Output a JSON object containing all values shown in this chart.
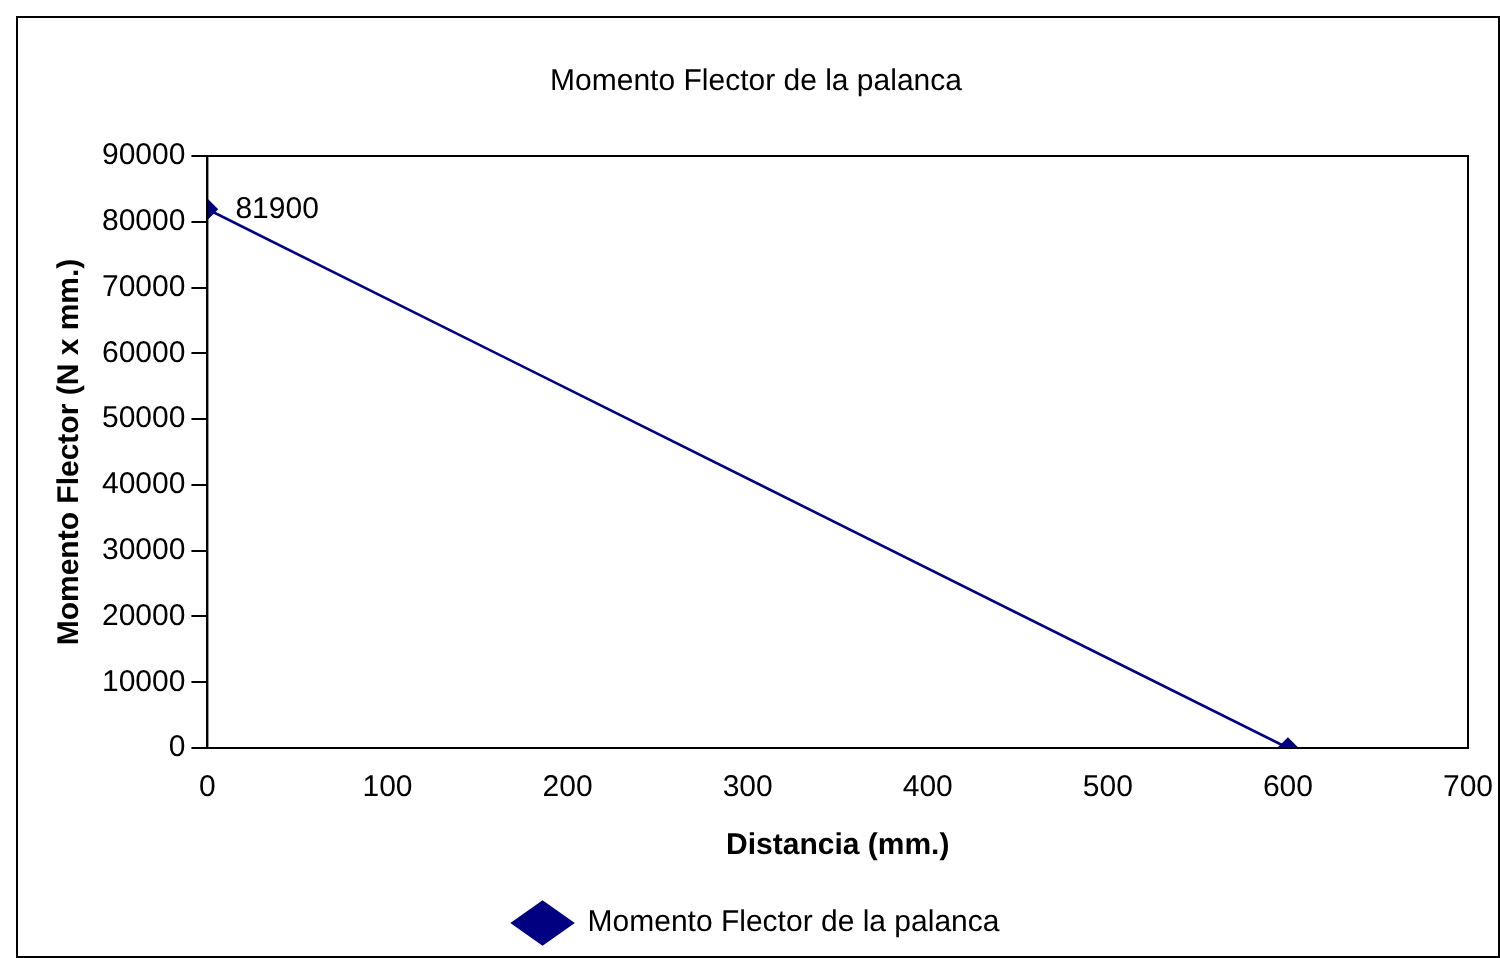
{
  "chart_data": {
    "type": "line",
    "title": "Momento Flector de la palanca",
    "xlabel": "Distancia (mm.)",
    "ylabel": "Momento Flector (N x mm.)",
    "x": [
      0,
      600
    ],
    "series": [
      {
        "name": "Momento Flector de la palanca",
        "color": "#000080",
        "values": [
          81900,
          0
        ],
        "value_labels": [
          "81900",
          null
        ]
      }
    ],
    "xlim": [
      0,
      700
    ],
    "xticks": [
      0,
      100,
      200,
      300,
      400,
      500,
      600,
      700
    ],
    "ylim": [
      0,
      90000
    ],
    "yticks": [
      0,
      10000,
      20000,
      30000,
      40000,
      50000,
      60000,
      70000,
      80000,
      90000
    ],
    "grid": false,
    "legend": "bottom",
    "marker": "diamond",
    "line_style": "solid"
  }
}
